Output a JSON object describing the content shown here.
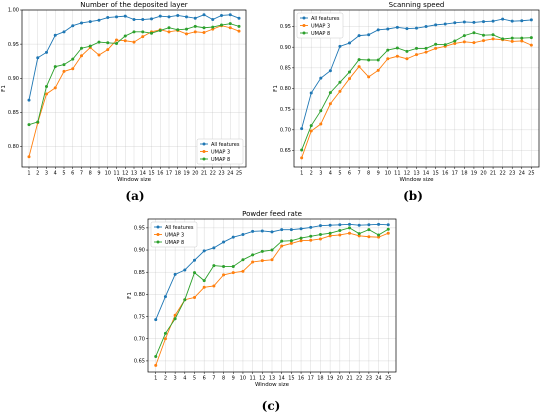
{
  "colors": {
    "All features": "#1f77b4",
    "UMAP 3": "#ff7f0e",
    "UMAP 8": "#2ca02c"
  },
  "chart_data": [
    {
      "id": "a",
      "type": "line",
      "panel_label": "(a)",
      "title": "Number of the deposited layer",
      "xlabel": "Window size",
      "ylabel": "F1",
      "x": [
        1,
        2,
        3,
        4,
        5,
        6,
        7,
        8,
        9,
        10,
        11,
        12,
        13,
        14,
        15,
        16,
        17,
        18,
        19,
        20,
        21,
        22,
        23,
        24,
        25
      ],
      "xlim": [
        0.2,
        25.8
      ],
      "ylim": [
        0.77,
        1.0
      ],
      "yticks": [
        0.8,
        0.85,
        0.9,
        0.95,
        1.0
      ],
      "grid": true,
      "legend": "lower-right",
      "series": [
        {
          "name": "All features",
          "values": [
            0.868,
            0.93,
            0.938,
            0.963,
            0.968,
            0.977,
            0.981,
            0.983,
            0.985,
            0.989,
            0.99,
            0.991,
            0.986,
            0.986,
            0.987,
            0.991,
            0.99,
            0.992,
            0.99,
            0.988,
            0.993,
            0.986,
            0.992,
            0.993,
            0.988
          ]
        },
        {
          "name": "UMAP 3",
          "values": [
            0.785,
            0.835,
            0.877,
            0.886,
            0.91,
            0.914,
            0.933,
            0.945,
            0.934,
            0.942,
            0.956,
            0.955,
            0.953,
            0.961,
            0.968,
            0.971,
            0.968,
            0.97,
            0.965,
            0.968,
            0.967,
            0.972,
            0.977,
            0.974,
            0.969
          ]
        },
        {
          "name": "UMAP 8",
          "values": [
            0.832,
            0.836,
            0.888,
            0.917,
            0.92,
            0.928,
            0.944,
            0.947,
            0.953,
            0.952,
            0.951,
            0.962,
            0.968,
            0.968,
            0.966,
            0.97,
            0.974,
            0.971,
            0.972,
            0.976,
            0.974,
            0.975,
            0.978,
            0.98,
            0.976
          ]
        }
      ]
    },
    {
      "id": "b",
      "type": "line",
      "panel_label": "(b)",
      "title": "Scanning speed",
      "xlabel": "Window size",
      "ylabel": "F1",
      "x": [
        1,
        2,
        3,
        4,
        5,
        6,
        7,
        8,
        9,
        10,
        11,
        12,
        13,
        14,
        15,
        16,
        17,
        18,
        19,
        20,
        21,
        22,
        23,
        24,
        25
      ],
      "xlim": [
        0.2,
        25.8
      ],
      "ylim": [
        0.61,
        0.99
      ],
      "yticks": [
        0.65,
        0.7,
        0.75,
        0.8,
        0.85,
        0.9,
        0.95
      ],
      "grid": true,
      "legend": "upper-left",
      "series": [
        {
          "name": "All features",
          "values": [
            0.703,
            0.789,
            0.825,
            0.843,
            0.902,
            0.91,
            0.928,
            0.93,
            0.942,
            0.944,
            0.948,
            0.945,
            0.946,
            0.95,
            0.954,
            0.956,
            0.959,
            0.961,
            0.96,
            0.962,
            0.963,
            0.968,
            0.963,
            0.964,
            0.966
          ]
        },
        {
          "name": "UMAP 3",
          "values": [
            0.632,
            0.697,
            0.714,
            0.763,
            0.793,
            0.824,
            0.853,
            0.828,
            0.844,
            0.872,
            0.878,
            0.872,
            0.882,
            0.888,
            0.897,
            0.902,
            0.909,
            0.913,
            0.911,
            0.916,
            0.92,
            0.918,
            0.914,
            0.915,
            0.905
          ]
        },
        {
          "name": "UMAP 8",
          "values": [
            0.651,
            0.71,
            0.746,
            0.79,
            0.815,
            0.84,
            0.87,
            0.869,
            0.869,
            0.893,
            0.898,
            0.89,
            0.897,
            0.897,
            0.907,
            0.906,
            0.915,
            0.928,
            0.935,
            0.929,
            0.93,
            0.92,
            0.922,
            0.922,
            0.923
          ]
        }
      ]
    },
    {
      "id": "c",
      "type": "line",
      "panel_label": "(c)",
      "title": "Powder feed rate",
      "xlabel": "Window size",
      "ylabel": "F1",
      "x": [
        1,
        2,
        3,
        4,
        5,
        6,
        7,
        8,
        9,
        10,
        11,
        12,
        13,
        14,
        15,
        16,
        17,
        18,
        19,
        20,
        21,
        22,
        23,
        24,
        25
      ],
      "xlim": [
        0.2,
        25.8
      ],
      "ylim": [
        0.625,
        0.97
      ],
      "yticks": [
        0.65,
        0.7,
        0.75,
        0.8,
        0.85,
        0.9,
        0.95
      ],
      "grid": true,
      "legend": "upper-left",
      "series": [
        {
          "name": "All features",
          "values": [
            0.743,
            0.795,
            0.845,
            0.855,
            0.877,
            0.898,
            0.905,
            0.918,
            0.929,
            0.935,
            0.942,
            0.943,
            0.941,
            0.946,
            0.946,
            0.948,
            0.951,
            0.955,
            0.956,
            0.957,
            0.958,
            0.956,
            0.957,
            0.958,
            0.957
          ]
        },
        {
          "name": "UMAP 3",
          "values": [
            0.64,
            0.7,
            0.753,
            0.788,
            0.793,
            0.816,
            0.819,
            0.844,
            0.849,
            0.852,
            0.873,
            0.876,
            0.878,
            0.909,
            0.915,
            0.921,
            0.922,
            0.925,
            0.932,
            0.934,
            0.938,
            0.932,
            0.93,
            0.929,
            0.938
          ]
        },
        {
          "name": "UMAP 8",
          "values": [
            0.66,
            0.712,
            0.745,
            0.788,
            0.849,
            0.831,
            0.865,
            0.863,
            0.863,
            0.878,
            0.889,
            0.897,
            0.9,
            0.92,
            0.921,
            0.927,
            0.931,
            0.935,
            0.938,
            0.944,
            0.95,
            0.937,
            0.946,
            0.934,
            0.947
          ]
        }
      ]
    }
  ]
}
